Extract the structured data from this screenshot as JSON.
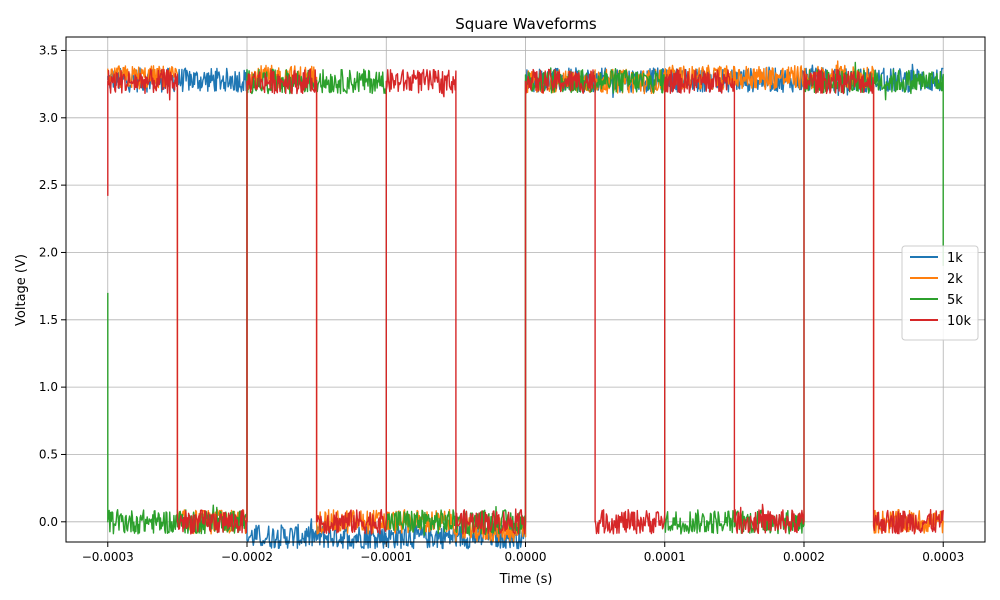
{
  "chart_data": {
    "type": "line",
    "title": "Square Waveforms",
    "xlabel": "Time (s)",
    "ylabel": "Voltage (V)",
    "xlim": [
      -0.00033,
      0.00033
    ],
    "ylim": [
      -0.15,
      3.6
    ],
    "xticks": [
      -0.0003,
      -0.0002,
      -0.0001,
      0.0,
      0.0001,
      0.0002,
      0.0003
    ],
    "xtick_labels": [
      "−0.0003",
      "−0.0002",
      "−0.0001",
      "0.0000",
      "0.0001",
      "0.0002",
      "0.0003"
    ],
    "yticks": [
      0.0,
      0.5,
      1.0,
      1.5,
      2.0,
      2.5,
      3.0,
      3.5
    ],
    "ytick_labels": [
      "0.0",
      "0.5",
      "1.0",
      "1.5",
      "2.0",
      "2.5",
      "3.0",
      "3.5"
    ],
    "grid": true,
    "legend_position": "center-right",
    "series": [
      {
        "name": "1k",
        "color": "#1f77b4",
        "x": [
          -0.0003,
          -0.0003,
          -0.0002,
          -0.0002,
          -0.0001,
          -0.0001,
          0.0,
          0.0,
          0.0001,
          0.0001,
          0.0002,
          0.0002,
          0.0003
        ],
        "y": [
          3.28,
          3.28,
          3.28,
          -0.11,
          -0.11,
          -0.11,
          -0.11,
          3.28,
          3.28,
          3.28,
          3.28,
          3.28,
          3.28
        ]
      },
      {
        "name": "2k",
        "color": "#ff7f0e",
        "x": [
          -0.0003,
          -0.00025,
          -0.00025,
          -0.0002,
          -0.0002,
          -0.00015,
          -0.00015,
          -0.0001,
          -0.0001,
          -5e-05,
          -5e-05,
          0.0,
          0.0,
          5e-05,
          5e-05,
          0.0001,
          0.0001,
          0.00015,
          0.00015,
          0.0002,
          0.0002,
          0.00025,
          0.00025,
          0.0003
        ],
        "y": [
          3.3,
          3.3,
          0.0,
          0.0,
          3.3,
          3.3,
          0.0,
          0.0,
          0.0,
          0.0,
          -0.06,
          -0.06,
          3.27,
          3.27,
          3.27,
          3.27,
          3.3,
          3.3,
          3.3,
          3.3,
          3.3,
          3.3,
          0.0,
          0.0
        ]
      },
      {
        "name": "5k",
        "color": "#2ca02c",
        "x": [
          -0.0003,
          -0.0003,
          -0.00025,
          -0.00025,
          -0.0002,
          -0.0002,
          -0.00015,
          -0.00015,
          -0.0001,
          -0.0001,
          -5e-05,
          -5e-05,
          0.0,
          0.0,
          5e-05,
          5e-05,
          0.0001,
          0.0001,
          0.00015,
          0.00015,
          0.0002,
          0.0002,
          0.00025,
          0.00025,
          0.0003,
          0.0003
        ],
        "y": [
          1.7,
          0.0,
          0.0,
          0.0,
          0.0,
          3.27,
          3.27,
          3.27,
          3.27,
          0.0,
          0.0,
          0.0,
          0.0,
          3.27,
          3.27,
          3.27,
          3.27,
          0.0,
          0.0,
          0.0,
          0.0,
          3.27,
          3.27,
          3.27,
          3.27,
          1.9
        ]
      },
      {
        "name": "10k",
        "color": "#d62728",
        "x": [
          -0.0003,
          -0.0003,
          -0.00025,
          -0.00025,
          -0.0002,
          -0.0002,
          -0.00015,
          -0.00015,
          -0.0001,
          -0.0001,
          -5e-05,
          -5e-05,
          0.0,
          0.0,
          5e-05,
          5e-05,
          0.0001,
          0.0001,
          0.00015,
          0.00015,
          0.0002,
          0.0002,
          0.00025,
          0.00025,
          0.0003
        ],
        "y": [
          2.42,
          3.27,
          3.27,
          0.0,
          0.0,
          3.27,
          3.27,
          0.0,
          0.0,
          3.27,
          3.27,
          0.0,
          0.0,
          3.27,
          3.27,
          0.0,
          0.0,
          3.27,
          3.27,
          0.0,
          0.0,
          3.27,
          3.27,
          0.0,
          0.0
        ]
      }
    ]
  }
}
